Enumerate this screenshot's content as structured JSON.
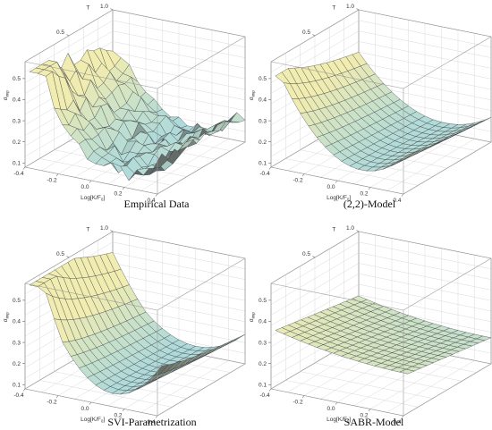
{
  "chart_data": [
    {
      "type": "surface",
      "caption": "Empirical Data",
      "x_axis": {
        "label": "Log[K/F",
        "label_sub": "0",
        "label_suffix": "]",
        "ticks": [
          "-0.4",
          "-0.2",
          "0.0",
          "0.2",
          "0.4"
        ],
        "range": [
          -0.4,
          0.4
        ]
      },
      "y_axis": {
        "label": "T",
        "ticks": [
          "0.5",
          "1.0"
        ],
        "range": [
          0,
          1.0
        ]
      },
      "z_axis": {
        "label": "σ",
        "label_sub": "imp",
        "ticks": [
          "0.1",
          "0.2",
          "0.3",
          "0.4",
          "0.5"
        ],
        "range": [
          0.08,
          0.58
        ]
      },
      "surface": {
        "model": "empirical",
        "atm_vol": 0.16,
        "skew": 0.55,
        "curvature": 0.9,
        "term_decay": 0.55,
        "noise": 0.035,
        "wing_level": 0.52
      },
      "colors": {
        "low": "#a8d8de",
        "high": "#f1ecb0",
        "shadow": "#3a3a3a"
      }
    },
    {
      "type": "surface",
      "caption": "(2,2)-Model",
      "x_axis": {
        "label": "Log[K/F",
        "label_sub": "0",
        "label_suffix": "]",
        "ticks": [
          "-0.4",
          "-0.2",
          "0.0",
          "0.2",
          "0.4"
        ],
        "range": [
          -0.4,
          0.4
        ]
      },
      "y_axis": {
        "label": "T",
        "ticks": [
          "0.5",
          "1.0"
        ],
        "range": [
          0,
          1.0
        ]
      },
      "z_axis": {
        "label": "σ",
        "label_sub": "imp",
        "ticks": [
          "0.1",
          "0.2",
          "0.3",
          "0.4",
          "0.5"
        ],
        "range": [
          0.08,
          0.58
        ]
      },
      "surface": {
        "model": "poly22",
        "atm_vol": 0.16,
        "skew": 0.5,
        "curvature": 0.8,
        "term_decay": 0.5,
        "noise": 0.0,
        "wing_level": 0.5
      },
      "colors": {
        "low": "#a8d8de",
        "high": "#f1ecb0",
        "shadow": "#3a3a3a"
      }
    },
    {
      "type": "surface",
      "caption": "SVI-Parametrization",
      "x_axis": {
        "label": "Log[K/F",
        "label_sub": "0",
        "label_suffix": "]",
        "ticks": [
          "-0.4",
          "-0.2",
          "0.0",
          "0.2",
          "0.4"
        ],
        "range": [
          -0.4,
          0.4
        ]
      },
      "y_axis": {
        "label": "T",
        "ticks": [
          "0.5",
          "1.0"
        ],
        "range": [
          0,
          1.0
        ]
      },
      "z_axis": {
        "label": "σ",
        "label_sub": "imp",
        "ticks": [
          "0.1",
          "0.2",
          "0.3",
          "0.4",
          "0.5"
        ],
        "range": [
          0.08,
          0.58
        ]
      },
      "surface": {
        "model": "svi",
        "atm_vol": 0.15,
        "skew": 0.6,
        "curvature": 1.1,
        "term_decay": 0.6,
        "noise": 0.0,
        "wing_level": 0.56
      },
      "colors": {
        "low": "#a8d8de",
        "high": "#f1ecb0",
        "shadow": "#3a3a3a"
      }
    },
    {
      "type": "surface",
      "caption": "SABR-Model",
      "x_axis": {
        "label": "Log[K/F",
        "label_sub": "0",
        "label_suffix": "]",
        "ticks": [
          "-0.4",
          "-0.2",
          "0.0",
          "0.2",
          "0.4"
        ],
        "range": [
          -0.4,
          0.4
        ]
      },
      "y_axis": {
        "label": "T",
        "ticks": [
          "0.5",
          "1.0"
        ],
        "range": [
          0,
          1.0
        ]
      },
      "z_axis": {
        "label": "σ",
        "label_sub": "imp",
        "ticks": [
          "0.1",
          "0.2",
          "0.3",
          "0.4",
          "0.5"
        ],
        "range": [
          0.08,
          0.58
        ]
      },
      "surface": {
        "model": "sabr",
        "atm_vol": 0.25,
        "skew": 0.25,
        "curvature": 0.2,
        "term_decay": 0.1,
        "noise": 0.0,
        "wing_level": 0.36
      },
      "colors": {
        "low": "#a8d8de",
        "high": "#f1ecb0",
        "shadow": "#3a3a3a"
      }
    }
  ]
}
